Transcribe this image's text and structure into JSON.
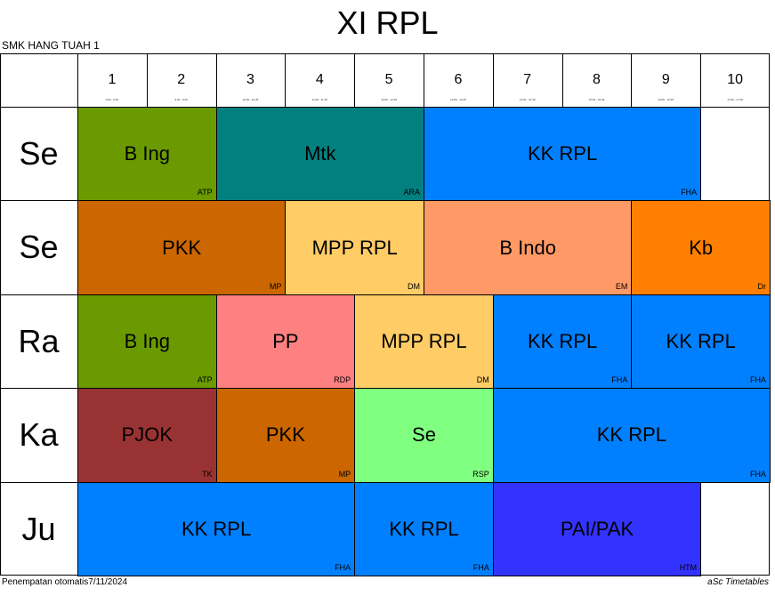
{
  "title": "XI RPL",
  "school": "SMK HANG TUAH 1",
  "periods": [
    {
      "num": "1",
      "time": "6:00 - 6:45"
    },
    {
      "num": "2",
      "time": "9:00 - 9:45"
    },
    {
      "num": "3",
      "time": "10:00 - 10:45"
    },
    {
      "num": "4",
      "time": "11:00 - 11:45"
    },
    {
      "num": "5",
      "time": "12:00 - 12:45"
    },
    {
      "num": "6",
      "time": "13:00 - 13:45"
    },
    {
      "num": "7",
      "time": "14:00 - 14:45"
    },
    {
      "num": "8",
      "time": "15:00 - 15:45"
    },
    {
      "num": "9",
      "time": "16:00 - 16:45"
    },
    {
      "num": "10",
      "time": "17:00 - 17:45"
    }
  ],
  "days": [
    "Se",
    "Se",
    "Ra",
    "Ka",
    "Ju"
  ],
  "lessons": [
    {
      "day": 0,
      "start": 1,
      "span": 2,
      "subject": "B Ing",
      "teacher": "ATP",
      "color": "#6a9a00"
    },
    {
      "day": 0,
      "start": 3,
      "span": 3,
      "subject": "Mtk",
      "teacher": "ARA",
      "color": "#028080"
    },
    {
      "day": 0,
      "start": 6,
      "span": 4,
      "subject": "KK RPL",
      "teacher": "FHA",
      "color": "#0080ff"
    },
    {
      "day": 1,
      "start": 1,
      "span": 3,
      "subject": "PKK",
      "teacher": "MP",
      "color": "#cc6600"
    },
    {
      "day": 1,
      "start": 4,
      "span": 2,
      "subject": "MPP RPL",
      "teacher": "DM",
      "color": "#ffcc66"
    },
    {
      "day": 1,
      "start": 6,
      "span": 3,
      "subject": "B Indo",
      "teacher": "EM",
      "color": "#ff9966"
    },
    {
      "day": 1,
      "start": 9,
      "span": 2,
      "subject": "Kb",
      "teacher": "Dr",
      "color": "#ff8000"
    },
    {
      "day": 2,
      "start": 1,
      "span": 2,
      "subject": "B Ing",
      "teacher": "ATP",
      "color": "#6a9a00"
    },
    {
      "day": 2,
      "start": 3,
      "span": 2,
      "subject": "PP",
      "teacher": "RDP",
      "color": "#ff8080"
    },
    {
      "day": 2,
      "start": 5,
      "span": 2,
      "subject": "MPP RPL",
      "teacher": "DM",
      "color": "#ffcc66"
    },
    {
      "day": 2,
      "start": 7,
      "span": 2,
      "subject": "KK RPL",
      "teacher": "FHA",
      "color": "#0080ff"
    },
    {
      "day": 2,
      "start": 9,
      "span": 2,
      "subject": "KK RPL",
      "teacher": "FHA",
      "color": "#0080ff"
    },
    {
      "day": 3,
      "start": 1,
      "span": 2,
      "subject": "PJOK",
      "teacher": "TK",
      "color": "#993333"
    },
    {
      "day": 3,
      "start": 3,
      "span": 2,
      "subject": "PKK",
      "teacher": "MP",
      "color": "#cc6600"
    },
    {
      "day": 3,
      "start": 5,
      "span": 2,
      "subject": "Se",
      "teacher": "RSP",
      "color": "#80ff80"
    },
    {
      "day": 3,
      "start": 7,
      "span": 4,
      "subject": "KK RPL",
      "teacher": "FHA",
      "color": "#0080ff"
    },
    {
      "day": 4,
      "start": 1,
      "span": 4,
      "subject": "KK RPL",
      "teacher": "FHA",
      "color": "#0080ff"
    },
    {
      "day": 4,
      "start": 5,
      "span": 2,
      "subject": "KK RPL",
      "teacher": "FHA",
      "color": "#0080ff"
    },
    {
      "day": 4,
      "start": 7,
      "span": 3,
      "subject": "PAI/PAK",
      "teacher": "HTM",
      "color": "#3333ff"
    }
  ],
  "footer_left": "Penempatan otomatis7/11/2024",
  "footer_right": "aSc Timetables"
}
